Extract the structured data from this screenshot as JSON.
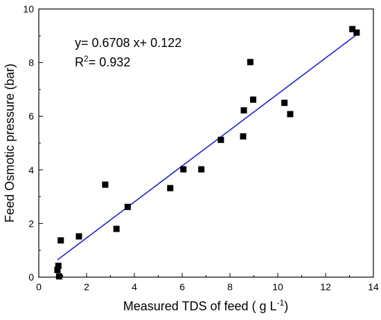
{
  "chart_data": {
    "type": "scatter",
    "xlabel": "Measured TDS of feed ( g L",
    "xlabel_superscript": "-1",
    "xlabel_suffix": ")",
    "ylabel": "Feed Osmotic pressure (bar)",
    "xlim": [
      0,
      14
    ],
    "ylim": [
      0,
      10
    ],
    "xticks": [
      0,
      2,
      4,
      6,
      8,
      10,
      12,
      14
    ],
    "yticks": [
      0,
      2,
      4,
      6,
      8,
      10
    ],
    "grid": false,
    "marker_color": "#000000",
    "fit_color": "#1f1fd0",
    "series": [
      {
        "values": [
          {
            "x": 0.78,
            "y": 0.27
          },
          {
            "x": 0.82,
            "y": 0.42
          },
          {
            "x": 0.85,
            "y": 0.03
          },
          {
            "x": 0.92,
            "y": 1.37
          },
          {
            "x": 1.68,
            "y": 1.52
          },
          {
            "x": 2.78,
            "y": 3.45
          },
          {
            "x": 3.25,
            "y": 1.8
          },
          {
            "x": 3.72,
            "y": 2.62
          },
          {
            "x": 5.5,
            "y": 3.32
          },
          {
            "x": 6.05,
            "y": 4.02
          },
          {
            "x": 6.8,
            "y": 4.02
          },
          {
            "x": 7.62,
            "y": 5.12
          },
          {
            "x": 8.55,
            "y": 5.25
          },
          {
            "x": 8.58,
            "y": 6.22
          },
          {
            "x": 8.85,
            "y": 8.02
          },
          {
            "x": 8.97,
            "y": 6.62
          },
          {
            "x": 10.28,
            "y": 6.5
          },
          {
            "x": 10.52,
            "y": 6.08
          },
          {
            "x": 13.12,
            "y": 9.25
          },
          {
            "x": 13.3,
            "y": 9.12
          }
        ]
      }
    ],
    "fit_line": {
      "slope": 0.6708,
      "intercept": 0.122,
      "x_start": 0.78,
      "x_end": 13.3
    },
    "annotation": {
      "equation": "y= 0.6708 x+ 0.122",
      "r2_prefix": "R",
      "r2_superscript": "2",
      "r2_value": "= 0.932"
    }
  }
}
